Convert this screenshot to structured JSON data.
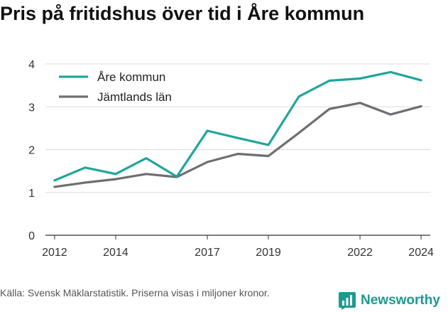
{
  "title": "Pris på fritidshus över tid i Åre kommun",
  "source": "Källa: Svensk Mäklarstatistik. Priserna visas i miljoner kronor.",
  "brand": {
    "name": "Newsworthy",
    "icon": "newsworthy-logo-icon"
  },
  "colors": {
    "are": "#1fa69c",
    "jamtland": "#6d6d72",
    "grid": "#dddddd",
    "axis": "#333333",
    "brand": "#1b9a90"
  },
  "chart_data": {
    "type": "line",
    "legend_position": "top-left",
    "grid": true,
    "xlim": [
      2011.7,
      2024.3
    ],
    "ylim": [
      0,
      4
    ],
    "x_ticks": [
      2012,
      2014,
      2017,
      2019,
      2022,
      2024
    ],
    "y_ticks": [
      0,
      1,
      2,
      3,
      4
    ],
    "x": [
      2012,
      2013,
      2014,
      2015,
      2016,
      2017,
      2018,
      2019,
      2020,
      2021,
      2022,
      2023,
      2024
    ],
    "series": [
      {
        "name": "Åre kommun",
        "color": "#1fa69c",
        "values": [
          1.28,
          1.58,
          1.43,
          1.8,
          1.37,
          2.44,
          2.27,
          2.11,
          3.24,
          3.61,
          3.66,
          3.81,
          3.62
        ]
      },
      {
        "name": "Jämtlands län",
        "color": "#6d6d72",
        "values": [
          1.13,
          1.23,
          1.31,
          1.43,
          1.36,
          1.71,
          1.9,
          1.85,
          2.39,
          2.95,
          3.09,
          2.82,
          3.01
        ]
      }
    ]
  }
}
